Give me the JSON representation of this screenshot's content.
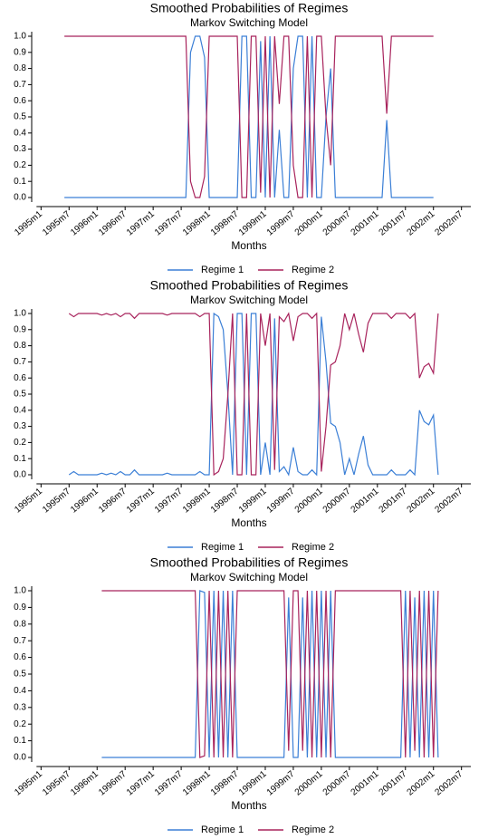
{
  "chart_data": [
    {
      "type": "line",
      "title": "Smoothed Probabilities of Regimes",
      "subtitle": "Markov Switching Model",
      "x_label": "Months",
      "xlim": [
        -2,
        92
      ],
      "ylim": [
        0,
        1
      ],
      "xticks": [
        {
          "value": 0,
          "label": "1995m1"
        },
        {
          "value": 6,
          "label": "1995m7"
        },
        {
          "value": 12,
          "label": "1996m1"
        },
        {
          "value": 18,
          "label": "1996m7"
        },
        {
          "value": 24,
          "label": "1997m1"
        },
        {
          "value": 30,
          "label": "1997m7"
        },
        {
          "value": 36,
          "label": "1998m1"
        },
        {
          "value": 42,
          "label": "1998m7"
        },
        {
          "value": 48,
          "label": "1999m1"
        },
        {
          "value": 54,
          "label": "1999m7"
        },
        {
          "value": 60,
          "label": "2000m1"
        },
        {
          "value": 66,
          "label": "2000m7"
        },
        {
          "value": 72,
          "label": "2001m1"
        },
        {
          "value": 78,
          "label": "2001m7"
        },
        {
          "value": 84,
          "label": "2002m1"
        },
        {
          "value": 90,
          "label": "2002m7"
        }
      ],
      "yticks": [
        {
          "value": 0,
          "label": "0.0"
        },
        {
          "value": 0.1,
          "label": "0.1"
        },
        {
          "value": 0.2,
          "label": "0.2"
        },
        {
          "value": 0.3,
          "label": "0.3"
        },
        {
          "value": 0.4,
          "label": "0.4"
        },
        {
          "value": 0.5,
          "label": "0.5"
        },
        {
          "value": 0.6,
          "label": "0.6"
        },
        {
          "value": 0.7,
          "label": "0.7"
        },
        {
          "value": 0.8,
          "label": "0.8"
        },
        {
          "value": 0.9,
          "label": "0.9"
        },
        {
          "value": 1,
          "label": "1.0"
        }
      ],
      "x": [
        5,
        6,
        7,
        8,
        9,
        10,
        11,
        12,
        13,
        14,
        15,
        16,
        17,
        18,
        19,
        20,
        21,
        22,
        23,
        24,
        25,
        26,
        27,
        28,
        29,
        30,
        31,
        32,
        33,
        34,
        35,
        36,
        37,
        38,
        39,
        40,
        41,
        42,
        43,
        44,
        45,
        46,
        47,
        48,
        49,
        50,
        51,
        52,
        53,
        54,
        55,
        56,
        57,
        58,
        59,
        60,
        61,
        62,
        63,
        64,
        65,
        66,
        67,
        68,
        69,
        70,
        71,
        72,
        73,
        74,
        75,
        76,
        77,
        78,
        79,
        80,
        81,
        82,
        83,
        84
      ],
      "series": [
        {
          "name": "Regime 1",
          "color": "#3b7fd6",
          "values": [
            0,
            0,
            0,
            0,
            0,
            0,
            0,
            0,
            0,
            0,
            0,
            0,
            0,
            0,
            0,
            0,
            0,
            0,
            0,
            0,
            0,
            0,
            0,
            0,
            0,
            0,
            0,
            0.9,
            1,
            1,
            0.87,
            0,
            0,
            0,
            0,
            0,
            0,
            0,
            1,
            1,
            0,
            0,
            0.97,
            0,
            1,
            0,
            0.42,
            0,
            0,
            0.8,
            1,
            1,
            0,
            1,
            0,
            0,
            0.5,
            0.8,
            0,
            0,
            0,
            0,
            0,
            0,
            0,
            0,
            0,
            0,
            0,
            0.48,
            0,
            0,
            0,
            0,
            0,
            0,
            0,
            0,
            0,
            0
          ]
        },
        {
          "name": "Regime 2",
          "color": "#a8235c",
          "values": [
            1,
            1,
            1,
            1,
            1,
            1,
            1,
            1,
            1,
            1,
            1,
            1,
            1,
            1,
            1,
            1,
            1,
            1,
            1,
            1,
            1,
            1,
            1,
            1,
            1,
            1,
            1,
            0.1,
            0,
            0,
            0.13,
            1,
            1,
            1,
            1,
            1,
            1,
            1,
            0,
            0,
            1,
            1,
            0.03,
            1,
            0,
            1,
            0.58,
            1,
            1,
            0.2,
            0,
            0,
            1,
            0,
            1,
            1,
            0.5,
            0.2,
            1,
            1,
            1,
            1,
            1,
            1,
            1,
            1,
            1,
            1,
            1,
            0.52,
            1,
            1,
            1,
            1,
            1,
            1,
            1,
            1,
            1,
            1
          ]
        }
      ]
    },
    {
      "type": "line",
      "title": "Smoothed Probabilities of Regimes",
      "subtitle": "Markov Switching Model",
      "x_label": "Months",
      "xlim": [
        -2,
        92
      ],
      "ylim": [
        0,
        1
      ],
      "xticks": [
        {
          "value": 0,
          "label": "1995m1"
        },
        {
          "value": 6,
          "label": "1995m7"
        },
        {
          "value": 12,
          "label": "1996m1"
        },
        {
          "value": 18,
          "label": "1996m7"
        },
        {
          "value": 24,
          "label": "1997m1"
        },
        {
          "value": 30,
          "label": "1997m7"
        },
        {
          "value": 36,
          "label": "1998m1"
        },
        {
          "value": 42,
          "label": "1998m7"
        },
        {
          "value": 48,
          "label": "1999m1"
        },
        {
          "value": 54,
          "label": "1999m7"
        },
        {
          "value": 60,
          "label": "2000m1"
        },
        {
          "value": 66,
          "label": "2000m7"
        },
        {
          "value": 72,
          "label": "2001m1"
        },
        {
          "value": 78,
          "label": "2001m7"
        },
        {
          "value": 84,
          "label": "2002m1"
        },
        {
          "value": 90,
          "label": "2002m7"
        }
      ],
      "yticks": [
        {
          "value": 0,
          "label": "0.0"
        },
        {
          "value": 0.1,
          "label": "0.1"
        },
        {
          "value": 0.2,
          "label": "0.2"
        },
        {
          "value": 0.3,
          "label": "0.3"
        },
        {
          "value": 0.4,
          "label": "0.4"
        },
        {
          "value": 0.5,
          "label": "0.5"
        },
        {
          "value": 0.6,
          "label": "0.6"
        },
        {
          "value": 0.7,
          "label": "0.7"
        },
        {
          "value": 0.8,
          "label": "0.8"
        },
        {
          "value": 0.9,
          "label": "0.9"
        },
        {
          "value": 1,
          "label": "1.0"
        }
      ],
      "x": [
        6,
        7,
        8,
        9,
        10,
        11,
        12,
        13,
        14,
        15,
        16,
        17,
        18,
        19,
        20,
        21,
        22,
        23,
        24,
        25,
        26,
        27,
        28,
        29,
        30,
        31,
        32,
        33,
        34,
        35,
        36,
        37,
        38,
        39,
        40,
        41,
        42,
        43,
        44,
        45,
        46,
        47,
        48,
        49,
        50,
        51,
        52,
        53,
        54,
        55,
        56,
        57,
        58,
        59,
        60,
        61,
        62,
        63,
        64,
        65,
        66,
        67,
        68,
        69,
        70,
        71,
        72,
        73,
        74,
        75,
        76,
        77,
        78,
        79,
        80,
        81,
        82,
        83,
        84,
        85
      ],
      "series": [
        {
          "name": "Regime 1",
          "color": "#3b7fd6",
          "values": [
            0,
            0.02,
            0,
            0,
            0,
            0,
            0,
            0.01,
            0,
            0.01,
            0,
            0.02,
            0,
            0,
            0.03,
            0,
            0,
            0,
            0,
            0,
            0,
            0.01,
            0,
            0,
            0,
            0,
            0,
            0,
            0.02,
            0,
            0,
            1,
            0.98,
            0.9,
            0.5,
            0,
            1,
            1,
            0,
            1,
            1,
            0,
            0.2,
            0,
            0.97,
            0.02,
            0.05,
            0,
            0.17,
            0.02,
            0,
            0,
            0.03,
            0,
            0.98,
            0.7,
            0.32,
            0.3,
            0.2,
            0,
            0.1,
            0,
            0.13,
            0.24,
            0.06,
            0,
            0,
            0,
            0,
            0.03,
            0,
            0,
            0,
            0.03,
            0,
            0.4,
            0.33,
            0.31,
            0.37,
            0
          ]
        },
        {
          "name": "Regime 2",
          "color": "#a8235c",
          "values": [
            1,
            0.98,
            1,
            1,
            1,
            1,
            1,
            0.99,
            1,
            0.99,
            1,
            0.98,
            1,
            1,
            0.97,
            1,
            1,
            1,
            1,
            1,
            1,
            0.99,
            1,
            1,
            1,
            1,
            1,
            1,
            0.98,
            1,
            1,
            0,
            0.02,
            0.1,
            0.5,
            1,
            0,
            0,
            1,
            0,
            0,
            1,
            0.8,
            1,
            0.03,
            0.98,
            0.95,
            1,
            0.83,
            0.98,
            1,
            1,
            0.97,
            1,
            0.02,
            0.3,
            0.68,
            0.7,
            0.8,
            1,
            0.9,
            1,
            0.87,
            0.76,
            0.94,
            1,
            1,
            1,
            1,
            0.97,
            1,
            1,
            1,
            0.97,
            1,
            0.6,
            0.67,
            0.69,
            0.63,
            1
          ]
        }
      ]
    },
    {
      "type": "line",
      "title": "Smoothed Probabilities of Regimes",
      "subtitle": "Markov Switching Model",
      "x_label": "Months",
      "xlim": [
        -2,
        92
      ],
      "ylim": [
        0,
        1
      ],
      "xticks": [
        {
          "value": 0,
          "label": "1995m1"
        },
        {
          "value": 6,
          "label": "1995m7"
        },
        {
          "value": 12,
          "label": "1996m1"
        },
        {
          "value": 18,
          "label": "1996m7"
        },
        {
          "value": 24,
          "label": "1997m1"
        },
        {
          "value": 30,
          "label": "1997m7"
        },
        {
          "value": 36,
          "label": "1998m1"
        },
        {
          "value": 42,
          "label": "1998m7"
        },
        {
          "value": 48,
          "label": "1999m1"
        },
        {
          "value": 54,
          "label": "1999m7"
        },
        {
          "value": 60,
          "label": "2000m1"
        },
        {
          "value": 66,
          "label": "2000m7"
        },
        {
          "value": 72,
          "label": "2001m1"
        },
        {
          "value": 78,
          "label": "2001m7"
        },
        {
          "value": 84,
          "label": "2002m1"
        },
        {
          "value": 90,
          "label": "2002m7"
        }
      ],
      "yticks": [
        {
          "value": 0,
          "label": "0.0"
        },
        {
          "value": 0.1,
          "label": "0.1"
        },
        {
          "value": 0.2,
          "label": "0.2"
        },
        {
          "value": 0.3,
          "label": "0.3"
        },
        {
          "value": 0.4,
          "label": "0.4"
        },
        {
          "value": 0.5,
          "label": "0.5"
        },
        {
          "value": 0.6,
          "label": "0.6"
        },
        {
          "value": 0.7,
          "label": "0.7"
        },
        {
          "value": 0.8,
          "label": "0.8"
        },
        {
          "value": 0.9,
          "label": "0.9"
        },
        {
          "value": 1,
          "label": "1.0"
        }
      ],
      "x": [
        13,
        14,
        15,
        16,
        17,
        18,
        19,
        20,
        21,
        22,
        23,
        24,
        25,
        26,
        27,
        28,
        29,
        30,
        31,
        32,
        33,
        34,
        35,
        36,
        37,
        38,
        39,
        40,
        41,
        42,
        43,
        44,
        45,
        46,
        47,
        48,
        49,
        50,
        51,
        52,
        53,
        54,
        55,
        56,
        57,
        58,
        59,
        60,
        61,
        62,
        63,
        64,
        65,
        66,
        67,
        68,
        69,
        70,
        71,
        72,
        73,
        74,
        75,
        76,
        77,
        78,
        79,
        80,
        81,
        82,
        83,
        84,
        85
      ],
      "series": [
        {
          "name": "Regime 1",
          "color": "#3b7fd6",
          "values": [
            0,
            0,
            0,
            0,
            0,
            0,
            0,
            0,
            0,
            0,
            0,
            0,
            0,
            0,
            0,
            0,
            0,
            0,
            0,
            0,
            0,
            1,
            0.99,
            0,
            1,
            0,
            1,
            0,
            1,
            0,
            0,
            0,
            0,
            0,
            0,
            0,
            0,
            0,
            0,
            0,
            0.96,
            0,
            0,
            0.96,
            0,
            1,
            0,
            1,
            0,
            1,
            0,
            0,
            0,
            0,
            0,
            0,
            0,
            0,
            0,
            0,
            0,
            0,
            0,
            0,
            0,
            1,
            0,
            0.96,
            0,
            1,
            0,
            1,
            0
          ]
        },
        {
          "name": "Regime 2",
          "color": "#a8235c",
          "values": [
            1,
            1,
            1,
            1,
            1,
            1,
            1,
            1,
            1,
            1,
            1,
            1,
            1,
            1,
            1,
            1,
            1,
            1,
            1,
            1,
            1,
            0,
            0.01,
            1,
            0,
            1,
            0,
            1,
            0,
            1,
            1,
            1,
            1,
            1,
            1,
            1,
            1,
            1,
            1,
            1,
            0.04,
            1,
            1,
            0.04,
            1,
            0,
            1,
            0,
            1,
            0,
            1,
            1,
            1,
            1,
            1,
            1,
            1,
            1,
            1,
            1,
            1,
            1,
            1,
            1,
            1,
            0,
            1,
            0.04,
            1,
            0,
            1,
            0,
            1
          ]
        }
      ]
    }
  ]
}
